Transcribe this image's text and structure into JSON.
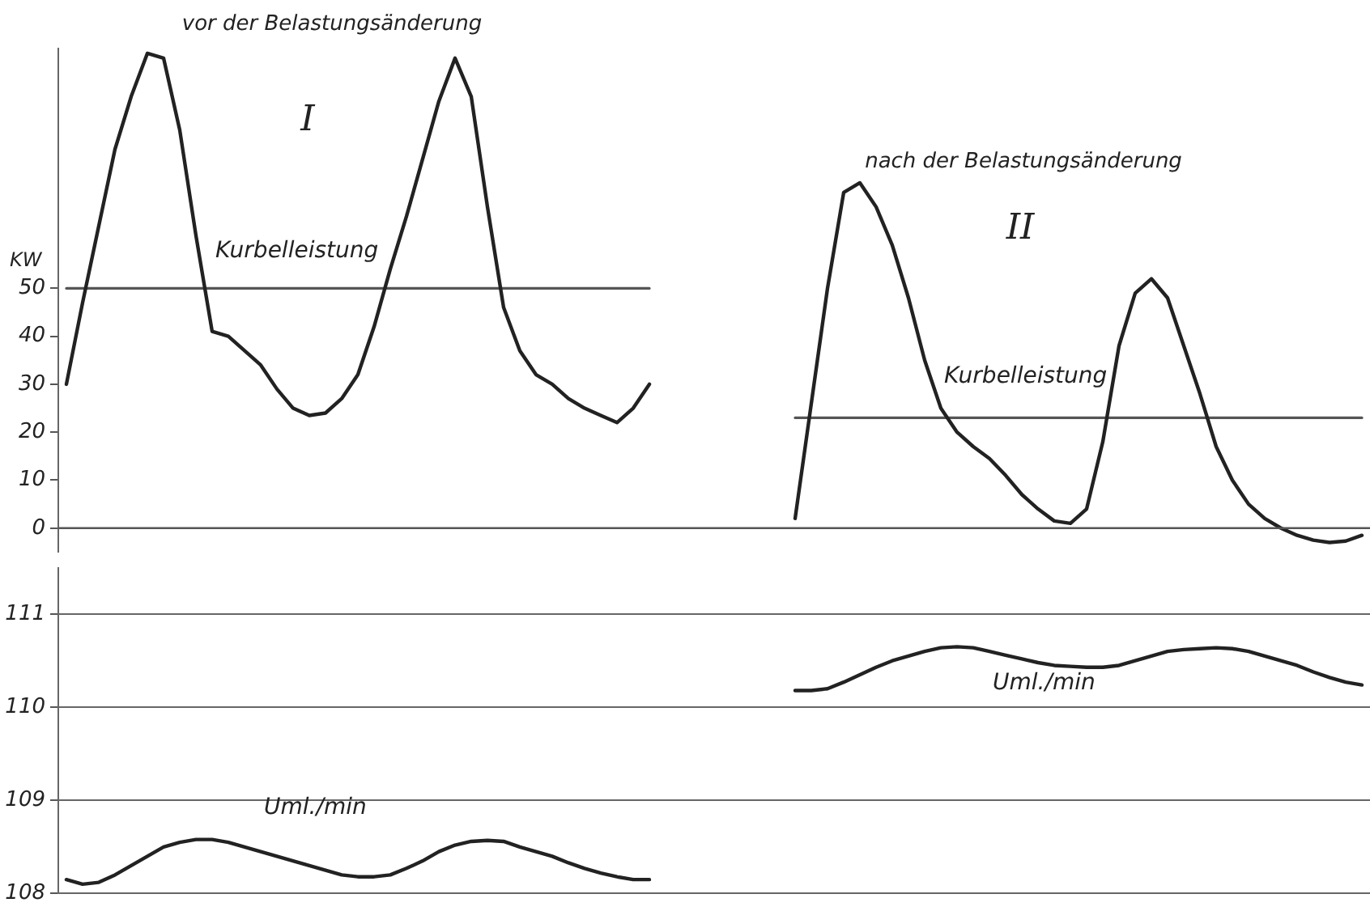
{
  "chart_data": [
    {
      "type": "line",
      "ylabel": "KW",
      "annotations": [
        "vor der Belastungsänderung",
        "I",
        "nach der Belastungsänderung",
        "II"
      ],
      "categories": [
        null,
        null,
        null,
        null,
        null,
        null,
        null,
        null,
        null,
        null,
        null,
        null,
        null,
        null,
        null,
        null,
        null,
        null,
        null,
        null,
        null,
        null,
        null,
        null,
        null,
        null,
        null,
        null,
        null,
        null,
        null,
        null,
        null,
        null,
        null,
        null,
        null,
        null,
        null,
        null,
        null,
        null,
        null,
        null,
        null,
        null,
        null,
        null,
        null,
        null,
        null,
        null,
        null,
        null,
        null,
        null,
        null,
        null,
        null,
        null,
        null,
        null,
        null,
        null,
        null,
        null,
        null,
        null,
        null,
        null,
        null,
        null,
        null,
        null,
        null,
        null,
        null,
        null,
        null,
        null,
        null
      ],
      "series": [
        {
          "name": "Kurbelleistung",
          "color": "#222222",
          "values": [
            30,
            47,
            63,
            79,
            90,
            99,
            98,
            83,
            61,
            41,
            40,
            37,
            34,
            29,
            25,
            23.5,
            24,
            27,
            32,
            42,
            54,
            65,
            77,
            89,
            98,
            90,
            67,
            46,
            37,
            32,
            30,
            27,
            25,
            23.5,
            22,
            25,
            30,
            null,
            null,
            null,
            null,
            null,
            null,
            null,
            null,
            null,
            null,
            null,
            null,
            null,
            null,
            null,
            null,
            null,
            null,
            null,
            null,
            null,
            null,
            null,
            null,
            null,
            null,
            null,
            null,
            null,
            null,
            null,
            null,
            null,
            null,
            null,
            null,
            null,
            null,
            null,
            null,
            null,
            null,
            null,
            null
          ]
        },
        {
          "name": "Kurbelleistung",
          "color": "#222222",
          "values": [
            null,
            null,
            null,
            null,
            null,
            null,
            null,
            null,
            null,
            null,
            null,
            null,
            null,
            null,
            null,
            null,
            null,
            null,
            null,
            null,
            null,
            null,
            null,
            null,
            null,
            null,
            null,
            null,
            null,
            null,
            null,
            null,
            null,
            null,
            null,
            null,
            null,
            null,
            null,
            null,
            null,
            null,
            null,
            null,
            null,
            2,
            26,
            50,
            70,
            72,
            67,
            59,
            48,
            35,
            25,
            20,
            17,
            14.5,
            11,
            7,
            4,
            1.5,
            1,
            4,
            18,
            38,
            49,
            52,
            48,
            38,
            28,
            17,
            10,
            5,
            2,
            0,
            -1.5,
            -2.5,
            -3,
            -2.7,
            -1.5
          ]
        },
        {
          "color": "#555555",
          "values": [
            50,
            50,
            50,
            50,
            50,
            50,
            50,
            50,
            50,
            50,
            50,
            50,
            50,
            50,
            50,
            50,
            50,
            50,
            50,
            50,
            50,
            50,
            50,
            50,
            50,
            50,
            50,
            50,
            50,
            50,
            50,
            50,
            50,
            50,
            50,
            50,
            50,
            null,
            null,
            null,
            null,
            null,
            null,
            null,
            null,
            null,
            null,
            null,
            null,
            null,
            null,
            null,
            null,
            null,
            null,
            null,
            null,
            null,
            null,
            null,
            null,
            null,
            null,
            null,
            null,
            null,
            null,
            null,
            null,
            null,
            null,
            null,
            null,
            null,
            null,
            null,
            null,
            null,
            null,
            null,
            null
          ]
        },
        {
          "color": "#555555",
          "values": [
            null,
            null,
            null,
            null,
            null,
            null,
            null,
            null,
            null,
            null,
            null,
            null,
            null,
            null,
            null,
            null,
            null,
            null,
            null,
            null,
            null,
            null,
            null,
            null,
            null,
            null,
            null,
            null,
            null,
            null,
            null,
            null,
            null,
            null,
            null,
            null,
            null,
            null,
            null,
            null,
            null,
            null,
            null,
            null,
            null,
            23,
            23,
            23,
            23,
            23,
            23,
            23,
            23,
            23,
            23,
            23,
            23,
            23,
            23,
            23,
            23,
            23,
            23,
            23,
            23,
            23,
            23,
            23,
            23,
            23,
            23,
            23,
            23,
            23,
            23,
            23,
            23,
            23,
            23,
            23,
            23
          ]
        }
      ],
      "ylim": [
        -5,
        100
      ],
      "yticks": [
        0,
        10,
        20,
        30,
        40,
        50
      ],
      "ref_lines": [
        {
          "axis": "y",
          "value": 0
        }
      ],
      "tick_labels": "y"
    },
    {
      "type": "line",
      "categories": [
        null,
        null,
        null,
        null,
        null,
        null,
        null,
        null,
        null,
        null,
        null,
        null,
        null,
        null,
        null,
        null,
        null,
        null,
        null,
        null,
        null,
        null,
        null,
        null,
        null,
        null,
        null,
        null,
        null,
        null,
        null,
        null,
        null,
        null,
        null,
        null,
        null,
        null,
        null,
        null,
        null,
        null,
        null,
        null,
        null,
        null,
        null,
        null,
        null,
        null,
        null,
        null,
        null,
        null,
        null,
        null,
        null,
        null,
        null,
        null,
        null,
        null,
        null,
        null,
        null,
        null,
        null,
        null,
        null,
        null,
        null,
        null,
        null,
        null,
        null,
        null,
        null,
        null,
        null,
        null,
        null
      ],
      "series": [
        {
          "name": "Uml./min",
          "color": "#222222",
          "values": [
            108.15,
            108.1,
            108.12,
            108.2,
            108.3,
            108.4,
            108.5,
            108.55,
            108.58,
            108.58,
            108.55,
            108.5,
            108.45,
            108.4,
            108.35,
            108.3,
            108.25,
            108.2,
            108.18,
            108.18,
            108.2,
            108.27,
            108.35,
            108.45,
            108.52,
            108.56,
            108.57,
            108.56,
            108.5,
            108.45,
            108.4,
            108.33,
            108.27,
            108.22,
            108.18,
            108.15,
            108.15,
            null,
            null,
            null,
            null,
            null,
            null,
            null,
            null,
            null,
            null,
            null,
            null,
            null,
            null,
            null,
            null,
            null,
            null,
            null,
            null,
            null,
            null,
            null,
            null,
            null,
            null,
            null,
            null,
            null,
            null,
            null,
            null,
            null,
            null,
            null,
            null,
            null,
            null,
            null,
            null,
            null,
            null,
            null,
            null
          ]
        },
        {
          "name": "Uml./min",
          "color": "#222222",
          "values": [
            null,
            null,
            null,
            null,
            null,
            null,
            null,
            null,
            null,
            null,
            null,
            null,
            null,
            null,
            null,
            null,
            null,
            null,
            null,
            null,
            null,
            null,
            null,
            null,
            null,
            null,
            null,
            null,
            null,
            null,
            null,
            null,
            null,
            null,
            null,
            null,
            null,
            null,
            null,
            null,
            null,
            null,
            null,
            null,
            null,
            110.18,
            110.18,
            110.2,
            110.27,
            110.35,
            110.43,
            110.5,
            110.55,
            110.6,
            110.64,
            110.65,
            110.64,
            110.6,
            110.56,
            110.52,
            110.48,
            110.45,
            110.44,
            110.43,
            110.43,
            110.45,
            110.5,
            110.55,
            110.6,
            110.62,
            110.63,
            110.64,
            110.63,
            110.6,
            110.55,
            110.5,
            110.45,
            110.38,
            110.32,
            110.27,
            110.24
          ]
        }
      ],
      "ylim": [
        108,
        111.5
      ],
      "yticks": [
        108,
        109,
        110,
        111
      ],
      "grid": "y",
      "tick_labels": "y"
    }
  ]
}
